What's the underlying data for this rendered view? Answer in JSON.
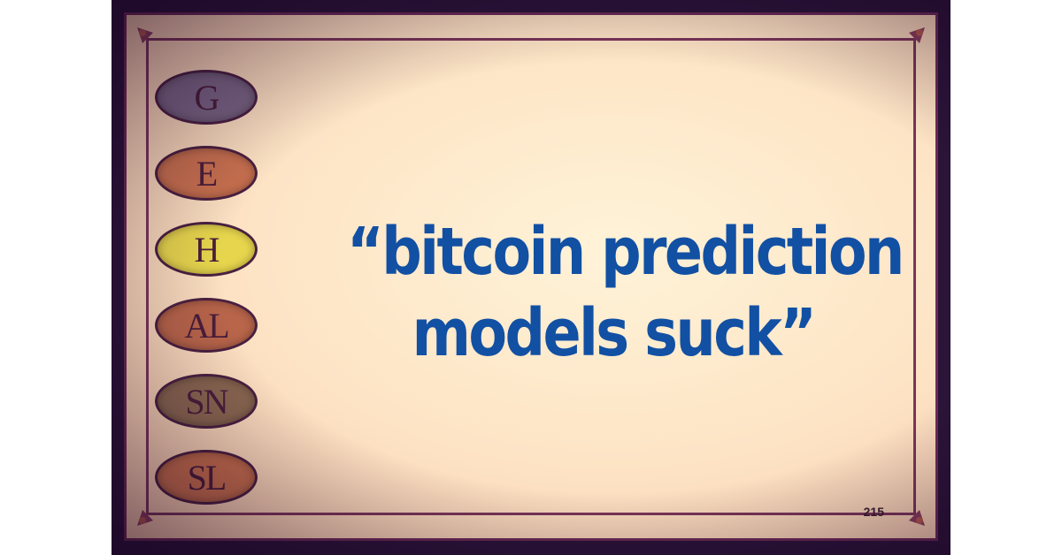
{
  "quote": {
    "line1": "“bitcoin prediction",
    "line2": "models suck”"
  },
  "card_number": "215",
  "pills": [
    {
      "label": "G",
      "color": "#7a6584"
    },
    {
      "label": "E",
      "color": "#c9714f"
    },
    {
      "label": "H",
      "color": "#e7d64d"
    },
    {
      "label": "AL",
      "color": "#b8654a"
    },
    {
      "label": "SN",
      "color": "#8a6750"
    },
    {
      "label": "SL",
      "color": "#c56d4c"
    }
  ],
  "colors": {
    "quote_text": "#1250a3",
    "card_background": "#fde3c4",
    "border": "#6a2a55"
  }
}
